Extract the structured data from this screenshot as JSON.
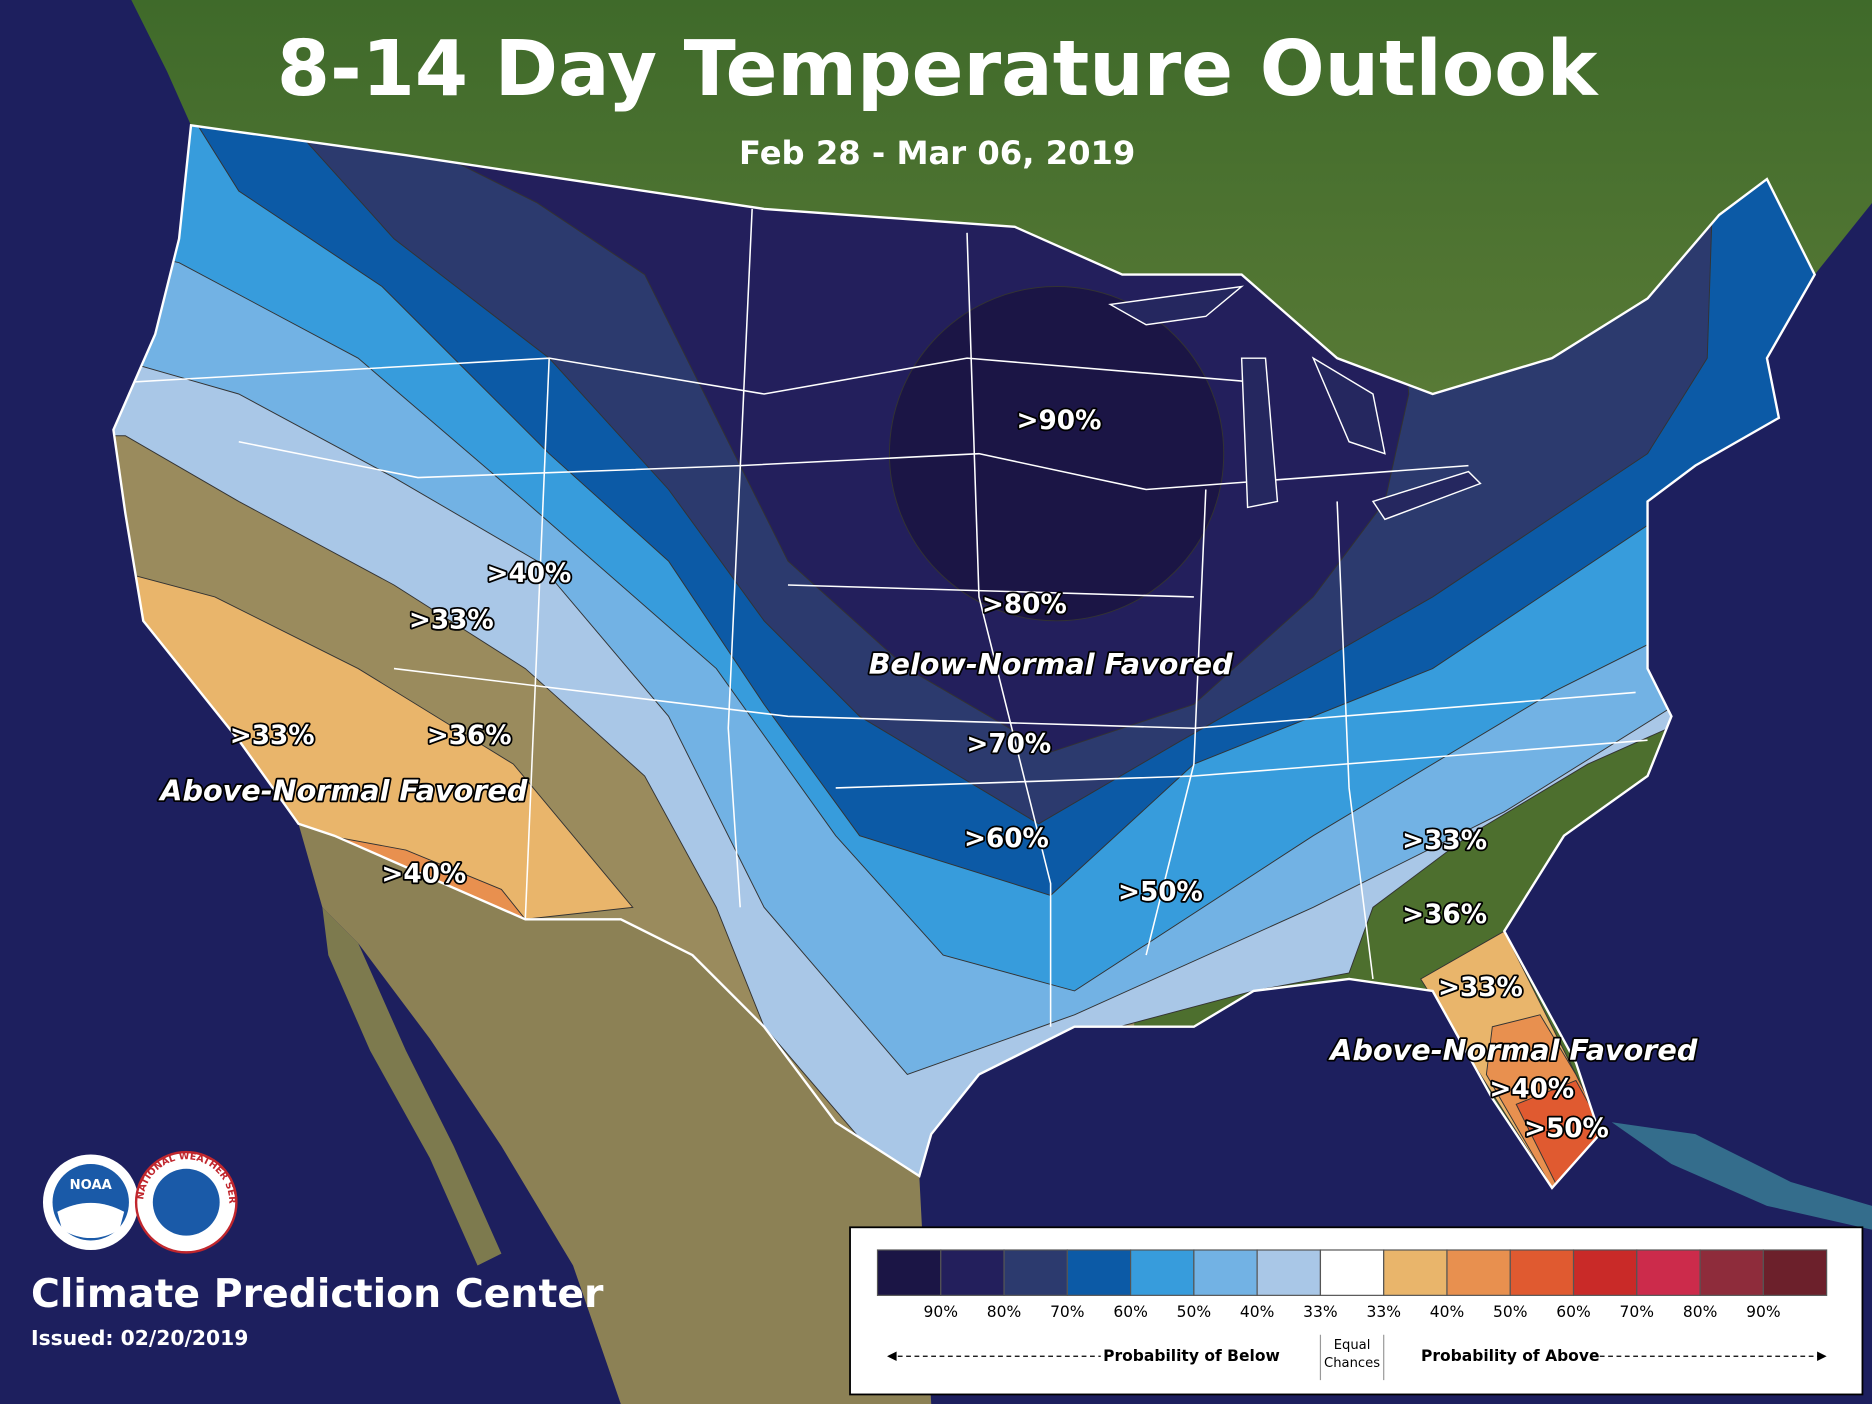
{
  "header": {
    "title": "8-14 Day Temperature Outlook",
    "date_range": "Feb 28 - Mar 06, 2019"
  },
  "map": {
    "region_labels": [
      "Below-Normal Favored",
      "Above-Normal Favored",
      "Above-Normal Favored"
    ],
    "contour_labels": [
      ">90%",
      ">80%",
      ">70%",
      ">60%",
      ">50%",
      ">40%",
      ">33%",
      ">33%",
      ">36%",
      ">40%",
      ">33%",
      ">36%",
      ">33%",
      ">40%",
      ">50%"
    ]
  },
  "legend": {
    "colors": [
      "#1b1545",
      "#231f5c",
      "#2c3a6e",
      "#0c5aa6",
      "#379cdc",
      "#72b2e4",
      "#a9c7e7",
      "#ffffff",
      "#e9b56b",
      "#e8904f",
      "#e05a30",
      "#c92a28",
      "#cc2b4b",
      "#8e2c3b",
      "#6c202b"
    ],
    "below_labels": [
      "90%",
      "80%",
      "70%",
      "60%",
      "50%",
      "40%",
      "33%"
    ],
    "above_labels": [
      "33%",
      "40%",
      "50%",
      "60%",
      "70%",
      "80%",
      "90%"
    ],
    "equal_chances": "Equal Chances",
    "below_caption": "Probability of Below",
    "above_caption": "Probability of Above"
  },
  "footer": {
    "agency": "Climate Prediction Center",
    "issued": "Issued: 02/20/2019"
  },
  "logos": {
    "noaa": "NOAA",
    "nws": "NATIONAL WEATHER SERVICE"
  }
}
